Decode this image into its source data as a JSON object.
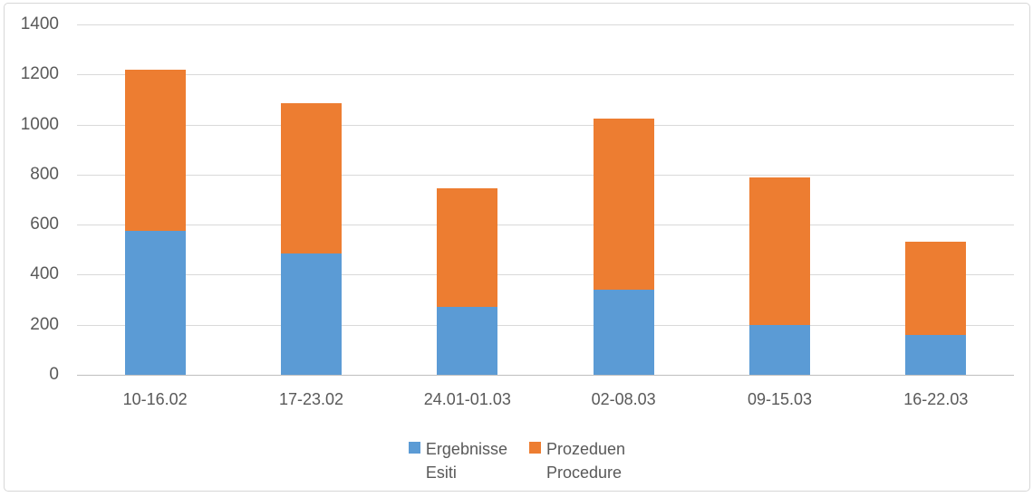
{
  "chart_data": {
    "type": "bar",
    "stacked": true,
    "title": "",
    "xlabel": "",
    "ylabel": "",
    "categories": [
      "10-16.02",
      "17-23.02",
      "24.01-01.03",
      "02-08.03",
      "09-15.03",
      "16-22.03"
    ],
    "series": [
      {
        "name": "Ergebnisse Esiti",
        "color": "#5B9BD5",
        "values": [
          575,
          485,
          270,
          340,
          200,
          160
        ]
      },
      {
        "name": "Prozeduen Procedure",
        "color": "#ED7D31",
        "values": [
          645,
          600,
          475,
          685,
          590,
          370
        ]
      }
    ],
    "totals": [
      1220,
      1085,
      745,
      1025,
      790,
      530
    ],
    "ylim": [
      0,
      1400
    ],
    "yticks": [
      "0",
      "200",
      "400",
      "600",
      "800",
      "1000",
      "1200",
      "1400"
    ],
    "grid": true,
    "legend_position": "bottom",
    "legend": [
      {
        "line1": "Ergebnisse",
        "line2": "Esiti",
        "color": "#5B9BD5"
      },
      {
        "line1": "Prozeduen",
        "line2": "Procedure",
        "color": "#ED7D31"
      }
    ]
  },
  "colors": {
    "series_blue": "#5B9BD5",
    "series_orange": "#ED7D31",
    "gridline": "#D9D9D9",
    "zero_axis": "#BFBFBF",
    "tick_text": "#595959",
    "frame_border": "#D7D7D7",
    "background": "#FFFFFF"
  }
}
